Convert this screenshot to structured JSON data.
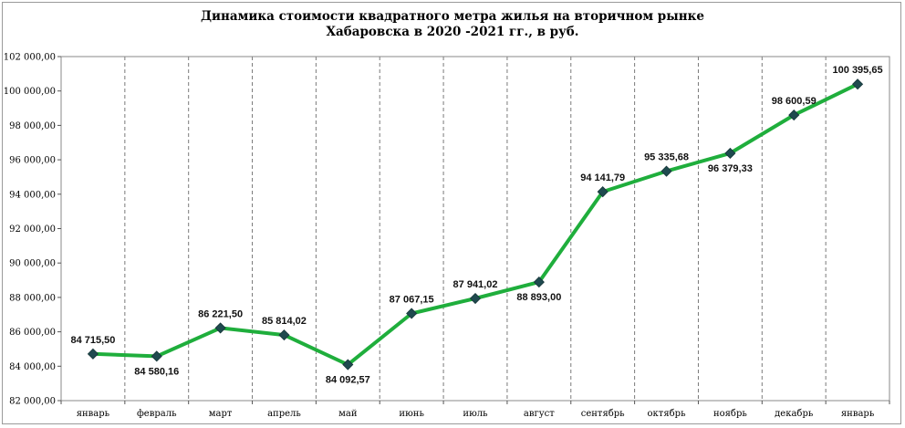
{
  "chart_data": {
    "type": "line",
    "title_lines": [
      "Динамика стоимости квадратного метра жилья на вторичном рынке",
      "Хабаровска в 2020 -2021 гг., в руб."
    ],
    "categories": [
      "январь",
      "февраль",
      "март",
      "апрель",
      "май",
      "июнь",
      "июль",
      "август",
      "сентябрь",
      "октябрь",
      "ноябрь",
      "декабрь",
      "январь"
    ],
    "series": [
      {
        "values": [
          84715.5,
          84580.16,
          86221.5,
          85814.02,
          84092.57,
          87067.15,
          87941.02,
          88893.0,
          94141.79,
          95335.68,
          96379.33,
          98600.59,
          100395.65
        ],
        "labels": [
          "84 715,50",
          "84 580,16",
          "86 221,50",
          "85 814,02",
          "84 092,57",
          "87 067,15",
          "87 941,02",
          "88 893,00",
          "94 141,79",
          "95 335,68",
          "96 379,33",
          "98 600,59",
          "100 395,65"
        ],
        "color": "#1fae3c",
        "marker_color": "#1f4a4f"
      }
    ],
    "ylim": [
      82000,
      102000
    ],
    "yticks": [
      82000,
      84000,
      86000,
      88000,
      90000,
      92000,
      94000,
      96000,
      98000,
      100000,
      102000
    ],
    "ytick_labels": [
      "82 000,00",
      "84 000,00",
      "86 000,00",
      "88 000,00",
      "90 000,00",
      "92 000,00",
      "94 000,00",
      "96 000,00",
      "98 000,00",
      "100 000,00",
      "102 000,00"
    ],
    "grid": "vertical-dashed",
    "legend": false
  }
}
